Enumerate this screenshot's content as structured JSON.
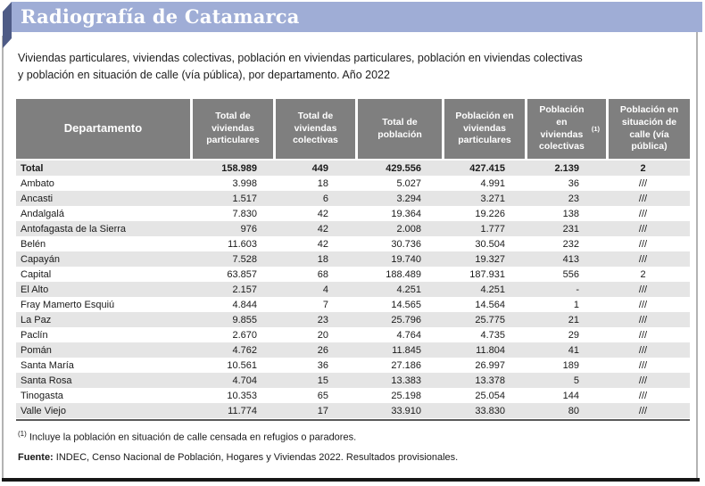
{
  "banner": {
    "title": "Radiografía de Catamarca",
    "bg_color": "#9fadd6",
    "fold_color": "#4e5b86"
  },
  "subtitle": {
    "line1": "Viviendas particulares, viviendas colectivas, población en viviendas particulares, población en viviendas colectivas",
    "line2": "y población en situación de calle (vía pública), por departamento. Año 2022"
  },
  "table": {
    "header_bg": "#7f7f7f",
    "stripe_color": "#e5e5e5",
    "headers": [
      {
        "text": "Departamento"
      },
      {
        "text": "Total de viviendas particulares"
      },
      {
        "text": "Total de viviendas colectivas"
      },
      {
        "text": "Total de población"
      },
      {
        "text": "Población en viviendas particulares"
      },
      {
        "text": "Población en viviendas colectivas",
        "sup": "(1)"
      },
      {
        "text": "Población en situación de calle (vía pública)"
      }
    ],
    "rows": [
      {
        "name": "Total",
        "bold": true,
        "values": [
          "158.989",
          "449",
          "429.556",
          "427.415",
          "2.139",
          "2"
        ]
      },
      {
        "name": "Ambato",
        "values": [
          "3.998",
          "18",
          "5.027",
          "4.991",
          "36",
          "///"
        ]
      },
      {
        "name": "Ancasti",
        "values": [
          "1.517",
          "6",
          "3.294",
          "3.271",
          "23",
          "///"
        ]
      },
      {
        "name": "Andalgalá",
        "values": [
          "7.830",
          "42",
          "19.364",
          "19.226",
          "138",
          "///"
        ]
      },
      {
        "name": "Antofagasta de la Sierra",
        "values": [
          "976",
          "42",
          "2.008",
          "1.777",
          "231",
          "///"
        ]
      },
      {
        "name": "Belén",
        "values": [
          "11.603",
          "42",
          "30.736",
          "30.504",
          "232",
          "///"
        ]
      },
      {
        "name": "Capayán",
        "values": [
          "7.528",
          "18",
          "19.740",
          "19.327",
          "413",
          "///"
        ]
      },
      {
        "name": "Capital",
        "values": [
          "63.857",
          "68",
          "188.489",
          "187.931",
          "556",
          "2"
        ]
      },
      {
        "name": "El Alto",
        "values": [
          "2.157",
          "4",
          "4.251",
          "4.251",
          "-",
          "///"
        ]
      },
      {
        "name": "Fray Mamerto Esquiú",
        "values": [
          "4.844",
          "7",
          "14.565",
          "14.564",
          "1",
          "///"
        ]
      },
      {
        "name": "La Paz",
        "values": [
          "9.855",
          "23",
          "25.796",
          "25.775",
          "21",
          "///"
        ]
      },
      {
        "name": "Paclín",
        "values": [
          "2.670",
          "20",
          "4.764",
          "4.735",
          "29",
          "///"
        ]
      },
      {
        "name": "Pomán",
        "values": [
          "4.762",
          "26",
          "11.845",
          "11.804",
          "41",
          "///"
        ]
      },
      {
        "name": "Santa María",
        "values": [
          "10.561",
          "36",
          "27.186",
          "26.997",
          "189",
          "///"
        ]
      },
      {
        "name": "Santa Rosa",
        "values": [
          "4.704",
          "15",
          "13.383",
          "13.378",
          "5",
          "///"
        ]
      },
      {
        "name": "Tinogasta",
        "values": [
          "10.353",
          "65",
          "25.198",
          "25.054",
          "144",
          "///"
        ]
      },
      {
        "name": "Valle Viejo",
        "values": [
          "11.774",
          "17",
          "33.910",
          "33.830",
          "80",
          "///"
        ]
      }
    ]
  },
  "notes": {
    "footnote_marker": "(1)",
    "footnote_text": "Incluye la población en situación de calle censada en refugios o paradores.",
    "source_label": "Fuente:",
    "source_text": "INDEC, Censo Nacional de Población, Hogares y Viviendas 2022. Resultados provisionales."
  }
}
